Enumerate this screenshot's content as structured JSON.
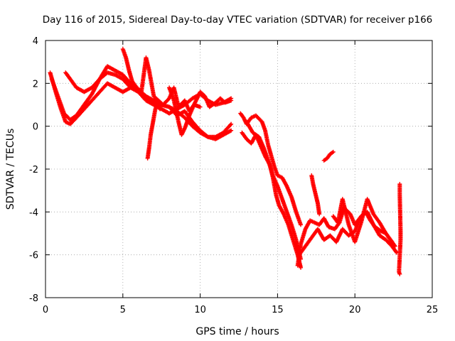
{
  "chart_data": {
    "type": "scatter",
    "title": "Day 116 of 2015, Sidereal Day-to-day VTEC variation (SDTVAR) for receiver p166",
    "xlabel": "GPS time / hours",
    "ylabel": "SDTVAR / TECUs",
    "xlim": [
      0,
      25
    ],
    "ylim": [
      -8,
      4
    ],
    "xticks": [
      0,
      5,
      10,
      15,
      20,
      25
    ],
    "yticks": [
      -8,
      -6,
      -4,
      -2,
      0,
      2,
      4
    ],
    "grid": true,
    "marker": "+",
    "series": [
      {
        "name": "SDTVAR",
        "color": "#ff0000",
        "segments": [
          {
            "x": [
              0.3,
              0.5,
              0.7,
              1.0,
              1.3,
              1.6,
              2.0,
              2.5,
              3.0,
              3.5,
              4.0,
              4.5,
              5.0,
              5.5,
              6.0,
              6.5,
              7.0,
              7.5,
              8.0,
              8.5,
              9.0,
              9.5,
              10.0,
              10.5,
              11.0,
              11.5,
              12.0
            ],
            "y": [
              2.5,
              2.0,
              1.5,
              0.8,
              0.2,
              0.1,
              0.4,
              0.8,
              1.2,
              1.6,
              2.0,
              1.8,
              1.6,
              1.8,
              1.6,
              1.2,
              1.0,
              0.8,
              0.6,
              0.8,
              1.0,
              1.3,
              1.5,
              1.2,
              1.0,
              1.1,
              1.3
            ]
          },
          {
            "x": [
              0.4,
              0.6,
              0.9,
              1.2,
              1.6,
              2.0,
              2.5,
              3.0,
              3.5,
              4.0,
              4.5,
              5.0,
              5.5,
              6.0,
              6.5,
              7.0,
              7.5,
              8.0,
              8.5,
              9.0,
              9.5,
              10.0,
              10.5,
              11.0,
              11.5,
              12.0
            ],
            "y": [
              2.2,
              1.8,
              1.2,
              0.6,
              0.3,
              0.5,
              1.0,
              1.5,
              2.2,
              2.8,
              2.6,
              2.4,
              2.0,
              1.6,
              1.3,
              1.1,
              1.0,
              0.9,
              0.5,
              0.7,
              0.2,
              -0.2,
              -0.5,
              -0.6,
              -0.4,
              -0.2
            ]
          },
          {
            "x": [
              1.3,
              1.6,
              2.0,
              2.5,
              3.0,
              3.5,
              4.0,
              4.5,
              5.0,
              5.5,
              6.0,
              6.5,
              7.0,
              7.5,
              8.0,
              8.5,
              9.0,
              9.5,
              10.0,
              10.5,
              11.0,
              11.5,
              12.0
            ],
            "y": [
              2.5,
              2.2,
              1.8,
              1.6,
              1.8,
              2.2,
              2.5,
              2.4,
              2.2,
              1.8,
              1.7,
              1.4,
              1.2,
              1.0,
              0.9,
              0.7,
              0.4,
              0.0,
              -0.3,
              -0.5,
              -0.5,
              -0.3,
              0.1
            ]
          },
          {
            "x": [
              5.0,
              5.2,
              5.4,
              5.6,
              5.9,
              6.2,
              6.5,
              6.7,
              7.0,
              7.3,
              7.6,
              8.0,
              8.3,
              8.6,
              9.0,
              9.3,
              9.6,
              10.0
            ],
            "y": [
              3.6,
              3.2,
              2.6,
              2.1,
              1.8,
              1.6,
              3.2,
              2.6,
              1.4,
              1.2,
              1.0,
              1.3,
              1.8,
              0.9,
              1.2,
              0.7,
              1.0,
              0.9
            ]
          },
          {
            "x": [
              6.6,
              6.7,
              6.8,
              6.9,
              7.0,
              7.1,
              7.2,
              7.4
            ],
            "y": [
              -1.5,
              -1.0,
              -0.4,
              0.0,
              0.4,
              0.8,
              1.0,
              0.8
            ]
          },
          {
            "x": [
              8.0,
              8.3,
              8.6,
              8.8,
              9.0,
              9.3,
              9.6,
              10.0,
              10.3,
              10.6,
              11.0,
              11.3,
              11.6,
              12.0
            ],
            "y": [
              1.8,
              1.2,
              0.2,
              -0.4,
              -0.1,
              0.5,
              1.0,
              1.6,
              1.4,
              0.9,
              1.1,
              1.3,
              1.1,
              1.2
            ]
          },
          {
            "x": [
              12.6,
              12.8,
              13.0,
              13.3,
              13.6,
              14.0,
              14.2,
              14.4,
              14.6,
              14.8,
              15.0,
              15.3,
              15.6,
              15.9,
              16.2,
              16.5
            ],
            "y": [
              0.6,
              0.4,
              0.1,
              0.4,
              0.5,
              0.2,
              -0.2,
              -0.9,
              -1.4,
              -1.9,
              -2.3,
              -2.4,
              -2.8,
              -3.3,
              -4.0,
              -4.6
            ]
          },
          {
            "x": [
              12.7,
              13.0,
              13.3,
              13.6,
              13.9,
              14.2,
              14.5,
              14.7,
              14.9,
              15.1,
              15.4,
              15.7,
              16.0,
              16.3,
              16.5
            ],
            "y": [
              -0.3,
              -0.6,
              -0.8,
              -0.4,
              -0.9,
              -1.4,
              -1.8,
              -2.4,
              -3.2,
              -3.7,
              -4.1,
              -4.6,
              -5.3,
              -6.0,
              -6.6
            ]
          },
          {
            "x": [
              13.0,
              13.4,
              13.8,
              14.1,
              14.4,
              14.7,
              15.0,
              15.3,
              15.6,
              15.9,
              16.2,
              16.5
            ],
            "y": [
              0.2,
              -0.3,
              -0.5,
              -1.0,
              -1.6,
              -2.3,
              -2.8,
              -3.4,
              -4.0,
              -4.6,
              -5.3,
              -6.2
            ]
          },
          {
            "x": [
              16.3,
              16.5,
              16.8,
              17.1,
              17.4,
              17.7,
              18.0,
              18.3,
              18.7,
              19.0,
              19.3,
              19.7,
              20.0,
              20.3,
              20.7,
              21.0,
              21.3,
              21.7,
              22.0,
              22.3,
              22.6
            ],
            "y": [
              -6.5,
              -5.5,
              -4.8,
              -4.4,
              -4.5,
              -4.6,
              -4.3,
              -4.7,
              -4.8,
              -4.5,
              -3.8,
              -4.1,
              -4.6,
              -4.3,
              -4.0,
              -4.4,
              -4.7,
              -4.9,
              -5.0,
              -5.3,
              -5.6
            ]
          },
          {
            "x": [
              16.4,
              16.8,
              17.2,
              17.6,
              18.0,
              18.4,
              18.8,
              19.2,
              19.6,
              20.0,
              20.4,
              20.8,
              21.2,
              21.6,
              22.0,
              22.4,
              22.7
            ],
            "y": [
              -6.0,
              -5.6,
              -5.2,
              -4.8,
              -5.3,
              -5.1,
              -5.4,
              -4.8,
              -5.1,
              -4.9,
              -4.2,
              -4.0,
              -4.6,
              -5.1,
              -5.3,
              -5.6,
              -5.9
            ]
          },
          {
            "x": [
              18.6,
              18.9,
              19.2,
              19.6,
              20.0,
              20.4,
              20.8,
              21.2,
              21.6,
              22.0,
              22.4
            ],
            "y": [
              -4.2,
              -4.5,
              -3.4,
              -4.6,
              -5.4,
              -4.5,
              -3.4,
              -4.1,
              -4.5,
              -5.0,
              -5.4
            ]
          },
          {
            "x": [
              18.0,
              18.2,
              18.4,
              18.6
            ],
            "y": [
              -1.6,
              -1.5,
              -1.3,
              -1.2
            ]
          },
          {
            "x": [
              17.2,
              17.3,
              17.4,
              17.6,
              17.7
            ],
            "y": [
              -2.3,
              -2.7,
              -3.0,
              -3.6,
              -4.1
            ]
          },
          {
            "x": [
              22.9,
              22.9,
              22.95,
              22.95,
              22.85,
              22.9
            ],
            "y": [
              -2.7,
              -3.2,
              -4.9,
              -5.3,
              -6.8,
              -6.9
            ]
          }
        ]
      }
    ]
  }
}
